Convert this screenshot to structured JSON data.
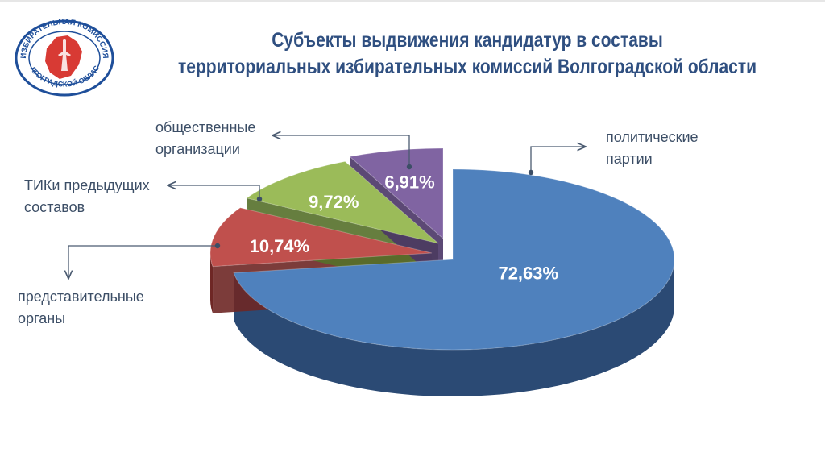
{
  "logo": {
    "arc_top": "ИЗБИРАТЕЛЬНАЯ КОМИССИЯ",
    "arc_bottom": "ВОЛГОГРАДСКОЙ ОБЛАСТИ"
  },
  "title_lines": [
    "Субъекты выдвижения кандидатур в составы",
    "территориальных избирательных комиссий Волгоградской области"
  ],
  "chart_data": {
    "type": "pie",
    "style": "3d exploded",
    "unit": "%",
    "slices": [
      {
        "label": "политические партии",
        "label_lines": [
          "политические",
          "партии"
        ],
        "value": 72.63,
        "value_label": "72,63%",
        "color": "#4f81bd",
        "side_color": "#2b4a74"
      },
      {
        "label": "представительные органы",
        "label_lines": [
          "представительные",
          "органы"
        ],
        "value": 10.74,
        "value_label": "10,74%",
        "color": "#c0504d",
        "side_color": "#6e2725"
      },
      {
        "label": "ТИКи предыдущих составов",
        "label_lines": [
          "ТИКи предыдущих",
          "составов"
        ],
        "value": 9.72,
        "value_label": "9,72%",
        "color": "#9bbb59",
        "side_color": "#55702a"
      },
      {
        "label": "общественные организации",
        "label_lines": [
          "общественные",
          "организации"
        ],
        "value": 6.91,
        "value_label": "6,91%",
        "color": "#8064a2",
        "side_color": "#4a3566"
      }
    ]
  }
}
